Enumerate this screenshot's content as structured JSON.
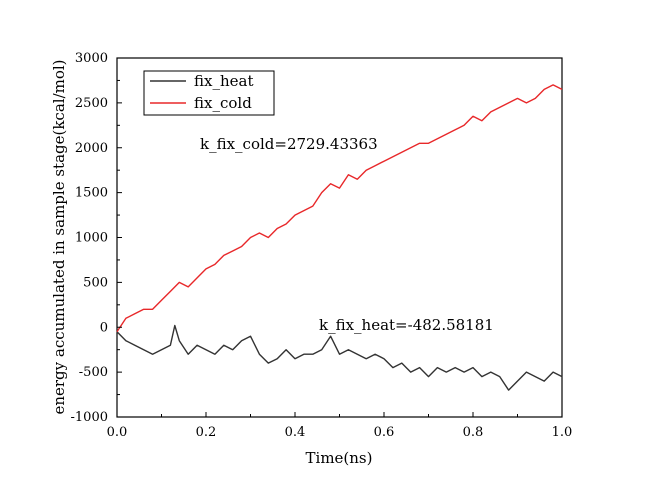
{
  "chart_data": {
    "type": "line",
    "title": "",
    "xlabel": "Time(ns)",
    "ylabel": "energy accumulated in sample stage(kcal/mol)",
    "xlim": [
      0.0,
      1.0
    ],
    "ylim": [
      -1000,
      3000
    ],
    "x_ticks": [
      0.0,
      0.2,
      0.4,
      0.6,
      0.8,
      1.0
    ],
    "x_tick_labels": [
      "0.0",
      "0.2",
      "0.4",
      "0.6",
      "0.8",
      "1.0"
    ],
    "y_ticks": [
      -1000,
      -500,
      0,
      500,
      1000,
      1500,
      2000,
      2500,
      3000
    ],
    "y_tick_labels": [
      "-1000",
      "-500",
      "0",
      "500",
      "1000",
      "1500",
      "2000",
      "2500",
      "3000"
    ],
    "grid": false,
    "legend_position": "top-left",
    "series": [
      {
        "name": "fix_heat",
        "color": "#333333",
        "x": [
          0.0,
          0.02,
          0.04,
          0.06,
          0.08,
          0.1,
          0.12,
          0.13,
          0.14,
          0.16,
          0.18,
          0.2,
          0.22,
          0.24,
          0.26,
          0.28,
          0.3,
          0.32,
          0.34,
          0.36,
          0.38,
          0.4,
          0.42,
          0.44,
          0.46,
          0.48,
          0.5,
          0.52,
          0.54,
          0.56,
          0.58,
          0.6,
          0.62,
          0.64,
          0.66,
          0.68,
          0.7,
          0.72,
          0.74,
          0.76,
          0.78,
          0.8,
          0.82,
          0.84,
          0.86,
          0.88,
          0.9,
          0.92,
          0.94,
          0.96,
          0.98,
          1.0
        ],
        "y": [
          -50,
          -150,
          -200,
          -250,
          -300,
          -250,
          -200,
          20,
          -150,
          -300,
          -200,
          -250,
          -300,
          -200,
          -250,
          -150,
          -100,
          -300,
          -400,
          -350,
          -250,
          -350,
          -300,
          -300,
          -250,
          -100,
          -300,
          -250,
          -300,
          -350,
          -300,
          -350,
          -450,
          -400,
          -500,
          -450,
          -550,
          -450,
          -500,
          -450,
          -500,
          -450,
          -550,
          -500,
          -550,
          -700,
          -600,
          -500,
          -550,
          -600,
          -500,
          -550
        ]
      },
      {
        "name": "fix_cold",
        "color": "#e8282a",
        "x": [
          0.0,
          0.02,
          0.04,
          0.06,
          0.08,
          0.1,
          0.12,
          0.14,
          0.16,
          0.18,
          0.2,
          0.22,
          0.24,
          0.26,
          0.28,
          0.3,
          0.32,
          0.34,
          0.36,
          0.38,
          0.4,
          0.42,
          0.44,
          0.46,
          0.48,
          0.5,
          0.52,
          0.54,
          0.56,
          0.58,
          0.6,
          0.62,
          0.64,
          0.66,
          0.68,
          0.7,
          0.72,
          0.74,
          0.76,
          0.78,
          0.8,
          0.82,
          0.84,
          0.86,
          0.88,
          0.9,
          0.92,
          0.94,
          0.96,
          0.98,
          1.0
        ],
        "y": [
          -50,
          100,
          150,
          200,
          200,
          300,
          400,
          500,
          450,
          550,
          650,
          700,
          800,
          850,
          900,
          1000,
          1050,
          1000,
          1100,
          1150,
          1250,
          1300,
          1350,
          1500,
          1600,
          1550,
          1700,
          1650,
          1750,
          1800,
          1850,
          1900,
          1950,
          2000,
          2050,
          2050,
          2100,
          2150,
          2200,
          2250,
          2350,
          2300,
          2400,
          2450,
          2500,
          2550,
          2500,
          2550,
          2650,
          2700,
          2650
        ]
      }
    ],
    "annotations": [
      {
        "text": "k_fix_cold=2729.43363",
        "x": 0.19,
        "y": 2000
      },
      {
        "text": "k_fix_heat=-482.58181",
        "x": 0.45,
        "y": 0
      }
    ]
  }
}
